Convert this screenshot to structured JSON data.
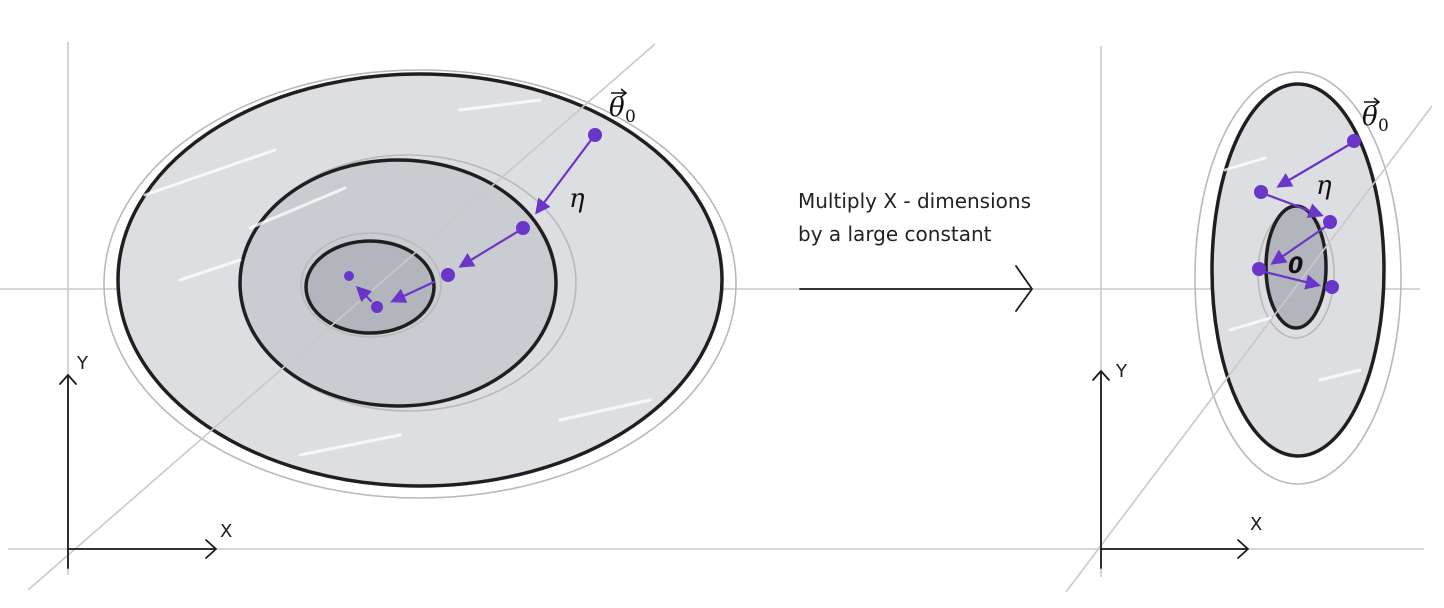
{
  "left_panel": {
    "axis_x_label": "X",
    "axis_y_label": "Y",
    "theta_symbol": "θ",
    "theta_subscript": "0",
    "eta_label": "η"
  },
  "transform": {
    "caption_line1": "Multiply X - dimensions",
    "caption_line2": "by a large constant"
  },
  "right_panel": {
    "axis_x_label": "X",
    "axis_y_label": "Y",
    "theta_symbol": "θ",
    "theta_subscript": "0",
    "eta_label": "η",
    "center_label": "0"
  },
  "colors": {
    "path": "#6a35c9",
    "contour_fill": "#dcdee2",
    "contour_stroke": "#1f1f1f"
  }
}
